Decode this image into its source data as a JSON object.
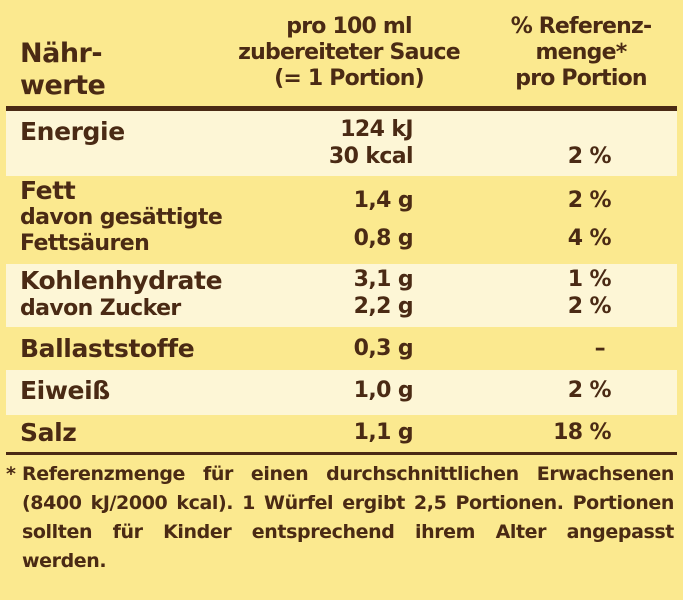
{
  "header": {
    "label_line1": "Nähr-",
    "label_line2": "werte",
    "col2_line1": "pro 100 ml",
    "col2_line2": "zubereiteter Sauce",
    "col2_line3": "(= 1 Portion)",
    "col3_line1": "% Referenz-",
    "col3_line2": "menge*",
    "col3_line3": "pro Portion"
  },
  "rows": {
    "energie": {
      "label": "Energie",
      "value_kj": "124 kJ",
      "value_kcal": "30 kcal",
      "percent": "2 %"
    },
    "fett": {
      "label": "Fett",
      "value": "1,4 g",
      "percent": "2 %",
      "sub_label_line1": "davon gesättigte",
      "sub_label_line2": "Fettsäuren",
      "sub_value": "0,8 g",
      "sub_percent": "4 %"
    },
    "kohlenhydrate": {
      "label": "Kohlenhydrate",
      "value": "3,1 g",
      "percent": "1 %",
      "sub_label": "davon Zucker",
      "sub_value": "2,2 g",
      "sub_percent": "2 %"
    },
    "ballaststoffe": {
      "label": "Ballaststoffe",
      "value": "0,3 g",
      "percent": "–"
    },
    "eiweiss": {
      "label": "Eiweiß",
      "value": "1,0 g",
      "percent": "2 %"
    },
    "salz": {
      "label": "Salz",
      "value": "1,1 g",
      "percent": "18 %"
    }
  },
  "footnote": {
    "star": "*",
    "text": "Referenzmenge für einen durchschnittlichen Erwachsenen (8400 kJ/2000 kcal). 1 Würfel ergibt 2,5 Portionen. Portionen sollten für Kinder entsprechend ihrem Alter angepasst werden."
  },
  "colors": {
    "background": "#fbe98f",
    "row_light": "#fdf6d6",
    "text": "#4a2a14"
  }
}
